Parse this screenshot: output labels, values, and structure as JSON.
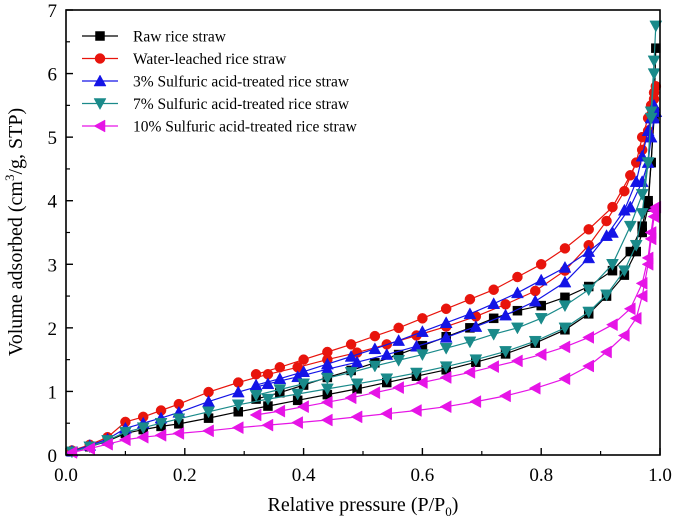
{
  "chart_data": {
    "type": "line",
    "xlabel": "Relative pressure (P/P",
    "xlabel_sub": "0",
    "xlabel_tail": ")",
    "ylabel_pre": "Volume adsorbed (cm",
    "ylabel_sup": "3",
    "ylabel_post": "/g, STP)",
    "xlim": [
      0.0,
      1.0
    ],
    "ylim": [
      0,
      7
    ],
    "xticks": [
      "0.0",
      "0.2",
      "0.4",
      "0.6",
      "0.8",
      "1.0"
    ],
    "yticks": [
      "0",
      "1",
      "2",
      "3",
      "4",
      "5",
      "6",
      "7"
    ],
    "grid": false,
    "legend_position": "top-left",
    "series": [
      {
        "name": "Raw rice straw",
        "color": "#000000",
        "marker": "square",
        "adsorption": [
          [
            0.01,
            0.05
          ],
          [
            0.04,
            0.13
          ],
          [
            0.07,
            0.22
          ],
          [
            0.1,
            0.34
          ],
          [
            0.13,
            0.4
          ],
          [
            0.16,
            0.45
          ],
          [
            0.19,
            0.49
          ],
          [
            0.24,
            0.58
          ],
          [
            0.29,
            0.68
          ],
          [
            0.34,
            0.77
          ],
          [
            0.39,
            0.86
          ],
          [
            0.44,
            0.95
          ],
          [
            0.49,
            1.04
          ],
          [
            0.54,
            1.14
          ],
          [
            0.59,
            1.24
          ],
          [
            0.64,
            1.34
          ],
          [
            0.69,
            1.46
          ],
          [
            0.74,
            1.59
          ],
          [
            0.79,
            1.76
          ],
          [
            0.84,
            1.97
          ],
          [
            0.88,
            2.22
          ],
          [
            0.91,
            2.5
          ],
          [
            0.94,
            2.83
          ],
          [
            0.96,
            3.2
          ],
          [
            0.97,
            3.5
          ],
          [
            0.98,
            3.9
          ],
          [
            0.985,
            4.6
          ],
          [
            0.99,
            5.4
          ],
          [
            0.993,
            6.4
          ]
        ],
        "desorption": [
          [
            0.99,
            5.3
          ],
          [
            0.985,
            4.6
          ],
          [
            0.98,
            4.0
          ],
          [
            0.97,
            3.6
          ],
          [
            0.95,
            3.2
          ],
          [
            0.92,
            2.9
          ],
          [
            0.88,
            2.65
          ],
          [
            0.84,
            2.48
          ],
          [
            0.8,
            2.35
          ],
          [
            0.76,
            2.27
          ],
          [
            0.72,
            2.15
          ],
          [
            0.68,
            2.0
          ],
          [
            0.64,
            1.86
          ],
          [
            0.6,
            1.72
          ],
          [
            0.56,
            1.58
          ],
          [
            0.52,
            1.45
          ],
          [
            0.48,
            1.33
          ],
          [
            0.44,
            1.22
          ],
          [
            0.4,
            1.1
          ],
          [
            0.36,
            0.98
          ],
          [
            0.32,
            0.88
          ]
        ]
      },
      {
        "name": "Water-leached rice straw",
        "color": "#e8140c",
        "marker": "circle",
        "adsorption": [
          [
            0.01,
            0.07
          ],
          [
            0.04,
            0.16
          ],
          [
            0.07,
            0.28
          ],
          [
            0.1,
            0.52
          ],
          [
            0.13,
            0.6
          ],
          [
            0.16,
            0.7
          ],
          [
            0.19,
            0.8
          ],
          [
            0.24,
            0.99
          ],
          [
            0.29,
            1.14
          ],
          [
            0.34,
            1.27
          ],
          [
            0.39,
            1.38
          ],
          [
            0.44,
            1.5
          ],
          [
            0.49,
            1.61
          ],
          [
            0.54,
            1.74
          ],
          [
            0.59,
            1.88
          ],
          [
            0.64,
            2.02
          ],
          [
            0.69,
            2.18
          ],
          [
            0.74,
            2.37
          ],
          [
            0.79,
            2.58
          ],
          [
            0.84,
            2.9
          ],
          [
            0.88,
            3.3
          ],
          [
            0.91,
            3.68
          ],
          [
            0.94,
            4.15
          ],
          [
            0.96,
            4.6
          ],
          [
            0.97,
            5.0
          ],
          [
            0.98,
            5.3
          ],
          [
            0.985,
            5.5
          ],
          [
            0.99,
            5.7
          ],
          [
            0.993,
            5.8
          ]
        ],
        "desorption": [
          [
            0.99,
            5.6
          ],
          [
            0.985,
            5.35
          ],
          [
            0.98,
            5.1
          ],
          [
            0.97,
            4.8
          ],
          [
            0.95,
            4.4
          ],
          [
            0.92,
            3.9
          ],
          [
            0.88,
            3.55
          ],
          [
            0.84,
            3.25
          ],
          [
            0.8,
            3.0
          ],
          [
            0.76,
            2.8
          ],
          [
            0.72,
            2.6
          ],
          [
            0.68,
            2.45
          ],
          [
            0.64,
            2.3
          ],
          [
            0.6,
            2.15
          ],
          [
            0.56,
            2.0
          ],
          [
            0.52,
            1.87
          ],
          [
            0.48,
            1.74
          ],
          [
            0.44,
            1.62
          ],
          [
            0.4,
            1.5
          ],
          [
            0.36,
            1.38
          ],
          [
            0.32,
            1.27
          ]
        ]
      },
      {
        "name": "3% Sulfuric acid-treated rice straw",
        "color": "#1414e6",
        "marker": "triangle-up",
        "adsorption": [
          [
            0.01,
            0.06
          ],
          [
            0.04,
            0.15
          ],
          [
            0.07,
            0.25
          ],
          [
            0.1,
            0.42
          ],
          [
            0.13,
            0.5
          ],
          [
            0.16,
            0.58
          ],
          [
            0.19,
            0.67
          ],
          [
            0.24,
            0.84
          ],
          [
            0.29,
            0.99
          ],
          [
            0.34,
            1.12
          ],
          [
            0.39,
            1.23
          ],
          [
            0.44,
            1.35
          ],
          [
            0.49,
            1.46
          ],
          [
            0.54,
            1.58
          ],
          [
            0.59,
            1.71
          ],
          [
            0.64,
            1.85
          ],
          [
            0.69,
            2.02
          ],
          [
            0.74,
            2.2
          ],
          [
            0.79,
            2.42
          ],
          [
            0.84,
            2.72
          ],
          [
            0.88,
            3.1
          ],
          [
            0.91,
            3.45
          ],
          [
            0.94,
            3.85
          ],
          [
            0.96,
            4.3
          ],
          [
            0.97,
            4.7
          ],
          [
            0.98,
            5.1
          ],
          [
            0.985,
            5.3
          ],
          [
            0.99,
            5.5
          ],
          [
            0.993,
            5.4
          ]
        ],
        "desorption": [
          [
            0.99,
            5.3
          ],
          [
            0.985,
            5.0
          ],
          [
            0.98,
            4.6
          ],
          [
            0.97,
            4.3
          ],
          [
            0.95,
            3.9
          ],
          [
            0.92,
            3.5
          ],
          [
            0.88,
            3.2
          ],
          [
            0.84,
            2.95
          ],
          [
            0.8,
            2.75
          ],
          [
            0.76,
            2.55
          ],
          [
            0.72,
            2.38
          ],
          [
            0.68,
            2.22
          ],
          [
            0.64,
            2.08
          ],
          [
            0.6,
            1.94
          ],
          [
            0.56,
            1.8
          ],
          [
            0.52,
            1.67
          ],
          [
            0.48,
            1.55
          ],
          [
            0.44,
            1.43
          ],
          [
            0.4,
            1.31
          ],
          [
            0.36,
            1.2
          ],
          [
            0.32,
            1.1
          ]
        ]
      },
      {
        "name": "7% Sulfuric acid-treated rice straw",
        "color": "#1a8a8a",
        "marker": "triangle-down",
        "adsorption": [
          [
            0.01,
            0.05
          ],
          [
            0.04,
            0.13
          ],
          [
            0.07,
            0.23
          ],
          [
            0.1,
            0.36
          ],
          [
            0.13,
            0.43
          ],
          [
            0.16,
            0.5
          ],
          [
            0.19,
            0.57
          ],
          [
            0.24,
            0.68
          ],
          [
            0.29,
            0.79
          ],
          [
            0.34,
            0.88
          ],
          [
            0.39,
            0.96
          ],
          [
            0.44,
            1.04
          ],
          [
            0.49,
            1.12
          ],
          [
            0.54,
            1.2
          ],
          [
            0.59,
            1.29
          ],
          [
            0.64,
            1.39
          ],
          [
            0.69,
            1.5
          ],
          [
            0.74,
            1.63
          ],
          [
            0.79,
            1.79
          ],
          [
            0.84,
            2.0
          ],
          [
            0.88,
            2.25
          ],
          [
            0.91,
            2.52
          ],
          [
            0.94,
            2.9
          ],
          [
            0.96,
            3.3
          ],
          [
            0.97,
            3.8
          ],
          [
            0.98,
            4.6
          ],
          [
            0.985,
            5.4
          ],
          [
            0.99,
            6.2
          ],
          [
            0.993,
            6.75
          ]
        ],
        "desorption": [
          [
            0.99,
            6.0
          ],
          [
            0.985,
            5.3
          ],
          [
            0.98,
            4.6
          ],
          [
            0.97,
            4.1
          ],
          [
            0.95,
            3.6
          ],
          [
            0.92,
            3.0
          ],
          [
            0.88,
            2.6
          ],
          [
            0.84,
            2.35
          ],
          [
            0.8,
            2.15
          ],
          [
            0.76,
            2.0
          ],
          [
            0.72,
            1.9
          ],
          [
            0.68,
            1.78
          ],
          [
            0.64,
            1.68
          ],
          [
            0.6,
            1.58
          ],
          [
            0.56,
            1.49
          ],
          [
            0.52,
            1.4
          ],
          [
            0.48,
            1.3
          ],
          [
            0.44,
            1.21
          ],
          [
            0.4,
            1.12
          ],
          [
            0.36,
            1.03
          ],
          [
            0.32,
            0.94
          ]
        ]
      },
      {
        "name": "10% Sulfuric acid-treated rice straw",
        "color": "#e614e6",
        "marker": "triangle-left",
        "adsorption": [
          [
            0.01,
            0.04
          ],
          [
            0.04,
            0.1
          ],
          [
            0.07,
            0.17
          ],
          [
            0.1,
            0.24
          ],
          [
            0.13,
            0.28
          ],
          [
            0.16,
            0.31
          ],
          [
            0.19,
            0.34
          ],
          [
            0.24,
            0.38
          ],
          [
            0.29,
            0.43
          ],
          [
            0.34,
            0.47
          ],
          [
            0.39,
            0.51
          ],
          [
            0.44,
            0.55
          ],
          [
            0.49,
            0.6
          ],
          [
            0.54,
            0.65
          ],
          [
            0.59,
            0.7
          ],
          [
            0.64,
            0.76
          ],
          [
            0.69,
            0.84
          ],
          [
            0.74,
            0.93
          ],
          [
            0.79,
            1.05
          ],
          [
            0.84,
            1.2
          ],
          [
            0.88,
            1.4
          ],
          [
            0.91,
            1.62
          ],
          [
            0.94,
            1.88
          ],
          [
            0.96,
            2.15
          ],
          [
            0.97,
            2.5
          ],
          [
            0.98,
            3.0
          ],
          [
            0.985,
            3.4
          ],
          [
            0.99,
            3.75
          ],
          [
            0.993,
            3.9
          ]
        ],
        "desorption": [
          [
            0.99,
            3.85
          ],
          [
            0.985,
            3.5
          ],
          [
            0.98,
            3.1
          ],
          [
            0.97,
            2.7
          ],
          [
            0.95,
            2.3
          ],
          [
            0.92,
            2.05
          ],
          [
            0.88,
            1.85
          ],
          [
            0.84,
            1.7
          ],
          [
            0.8,
            1.58
          ],
          [
            0.76,
            1.48
          ],
          [
            0.72,
            1.39
          ],
          [
            0.68,
            1.3
          ],
          [
            0.64,
            1.22
          ],
          [
            0.6,
            1.14
          ],
          [
            0.56,
            1.06
          ],
          [
            0.52,
            0.98
          ],
          [
            0.48,
            0.9
          ],
          [
            0.44,
            0.83
          ],
          [
            0.4,
            0.76
          ],
          [
            0.36,
            0.69
          ],
          [
            0.32,
            0.63
          ]
        ]
      }
    ]
  }
}
